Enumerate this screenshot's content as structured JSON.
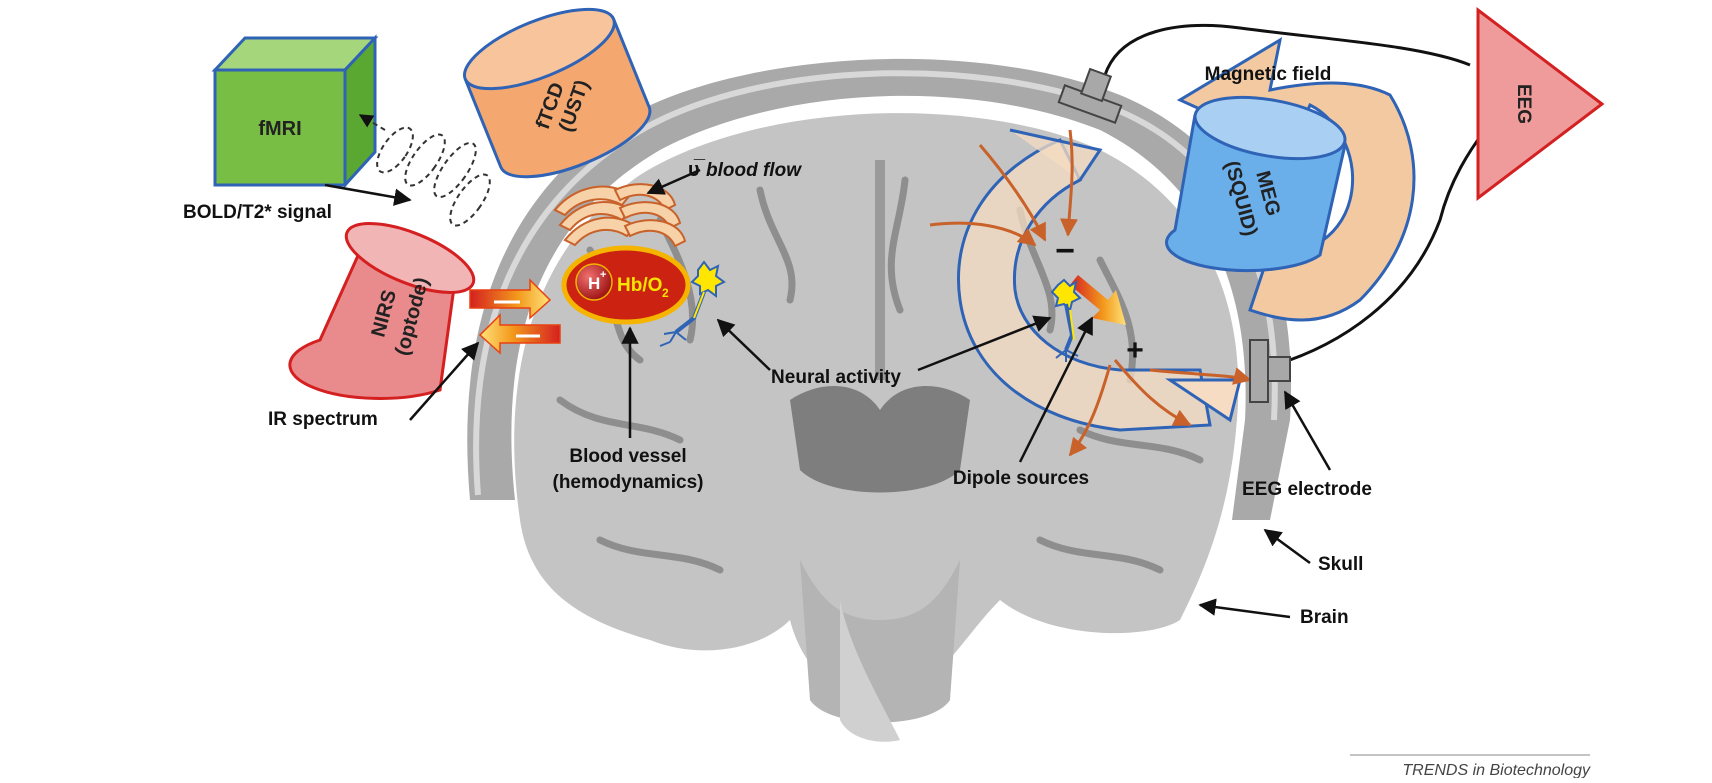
{
  "devices": {
    "fmri": "fMRI",
    "ftcd": [
      "fTCD",
      "(UST)"
    ],
    "nirs": [
      "NIRS",
      "(optode)"
    ],
    "meg": [
      "MEG",
      "(SQUID)"
    ],
    "eeg": "EEG"
  },
  "labels": {
    "bold_signal": "BOLD/T2* signal",
    "blood_flow_symbol": "υ̅",
    "blood_flow": "blood flow",
    "hb": "Hb/O",
    "hb_sub": "2",
    "h_plus": "H",
    "h_plus_sup": "+",
    "ir_spectrum": "IR spectrum",
    "blood_vessel": [
      "Blood vessel",
      "(hemodynamics)"
    ],
    "neural_activity": "Neural activity",
    "dipole_sources": "Dipole sources",
    "magnetic_field": "Magnetic field",
    "minus": "−",
    "plus": "+",
    "eeg_electrode": "EEG electrode",
    "skull": "Skull",
    "brain": "Brain"
  },
  "credit": "TRENDS in Biotechnology",
  "colors": {
    "fmri_green": "#7cc043",
    "ftcd_orange": "#f4a870",
    "nirs_red": "#e98a8c",
    "meg_blue": "#6aaeea",
    "eeg_red": "#ef9b9b",
    "outline_blue": "#2f63b6",
    "arrow_brown": "#c8622a",
    "field_tan": "#f2c9a0",
    "brain_gray": "#bdbdbd"
  }
}
